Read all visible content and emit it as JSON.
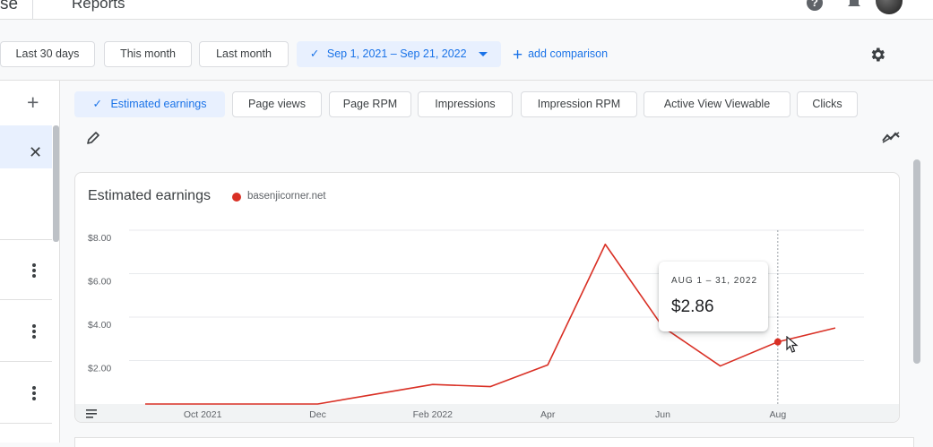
{
  "topbar": {
    "left_crumb": "se",
    "title": "Reports"
  },
  "filters": {
    "items": [
      {
        "label": "Last 30 days"
      },
      {
        "label": "This month"
      },
      {
        "label": "Last month"
      },
      {
        "label": "Sep 1, 2021 – Sep 21, 2022",
        "selected": true
      }
    ],
    "add_comparison": "add comparison"
  },
  "metrics": {
    "chips": [
      {
        "label": "Estimated earnings",
        "active": true
      },
      {
        "label": "Page views"
      },
      {
        "label": "Page RPM"
      },
      {
        "label": "Impressions"
      },
      {
        "label": "Impression RPM"
      },
      {
        "label": "Active View Viewable"
      },
      {
        "label": "Clicks"
      }
    ]
  },
  "card": {
    "title": "Estimated earnings",
    "legend": "basenjicorner.net"
  },
  "tooltip": {
    "date": "AUG 1 – 31, 2022",
    "value": "$2.86"
  },
  "colors": {
    "accent": "#1a73e8",
    "series": "#d93025",
    "chip_active_bg": "#e8f0fe"
  },
  "chart_data": {
    "type": "line",
    "title": "Estimated earnings",
    "x": [
      "2021-09",
      "2021-10",
      "2021-11",
      "2021-12",
      "2022-01",
      "2022-02",
      "2022-03",
      "2022-04",
      "2022-05",
      "2022-06",
      "2022-07",
      "2022-08",
      "2022-09"
    ],
    "x_tick_labels": [
      "Oct 2021",
      "Dec",
      "Feb 2022",
      "Apr",
      "Jun",
      "Aug"
    ],
    "x_tick_positions": [
      "2021-10",
      "2021-12",
      "2022-02",
      "2022-04",
      "2022-06",
      "2022-08"
    ],
    "y_tick_labels": [
      "$8.00",
      "$6.00",
      "$4.00",
      "$2.00"
    ],
    "y_ticks": [
      8,
      6,
      4,
      2
    ],
    "ylim": [
      0,
      8.4
    ],
    "series": [
      {
        "name": "basenjicorner.net",
        "values": [
          0,
          0,
          0,
          0,
          0.45,
          0.9,
          0.8,
          1.8,
          7.35,
          3.55,
          1.75,
          2.86,
          3.5
        ]
      }
    ],
    "highlight": {
      "x": "2022-08",
      "value": 2.86
    },
    "grid": true
  }
}
